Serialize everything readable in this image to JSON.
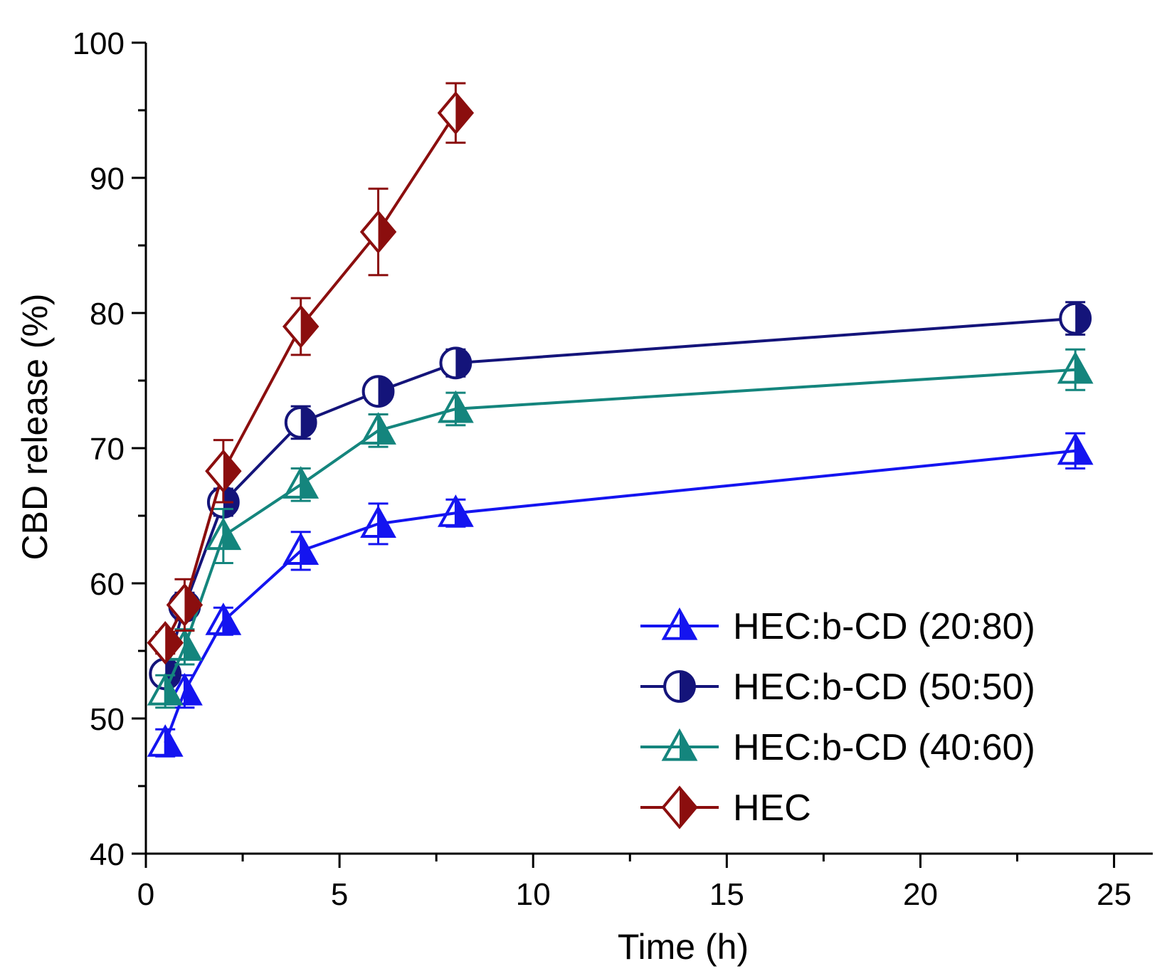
{
  "chart_data": {
    "type": "line",
    "xlabel": "Time (h)",
    "ylabel": "CBD release (%)",
    "xlim": [
      0,
      26
    ],
    "ylim": [
      40,
      100
    ],
    "xticks": [
      "0",
      "5",
      "10",
      "15",
      "20",
      "25"
    ],
    "yticks": [
      "40",
      "50",
      "60",
      "70",
      "80",
      "90",
      "100"
    ],
    "grid": false,
    "legend_position": "bottom-right",
    "series": [
      {
        "name": "HEC:b-CD (20:80)",
        "color": "#1414f0",
        "marker": "half-triangle",
        "x": [
          0.5,
          1,
          2,
          4,
          6,
          8,
          24
        ],
        "y": [
          48.2,
          52.0,
          57.2,
          62.4,
          64.4,
          65.2,
          69.8
        ],
        "err": [
          1.0,
          1.2,
          1.0,
          1.4,
          1.5,
          1.0,
          1.3
        ]
      },
      {
        "name": "HEC:b-CD (50:50)",
        "color": "#14147a",
        "marker": "half-circle",
        "x": [
          0.5,
          1,
          2,
          4,
          6,
          8,
          24
        ],
        "y": [
          53.3,
          58.3,
          66.0,
          71.9,
          74.2,
          76.3,
          79.6
        ],
        "err": [
          0.8,
          1.0,
          1.0,
          1.2,
          0.8,
          1.0,
          1.2
        ]
      },
      {
        "name": "HEC:b-CD (40:60)",
        "color": "#14857d",
        "marker": "half-triangle",
        "x": [
          0.5,
          1,
          2,
          4,
          6,
          8,
          24
        ],
        "y": [
          52.0,
          55.3,
          63.5,
          67.3,
          71.3,
          72.9,
          75.8
        ],
        "err": [
          1.2,
          1.3,
          2.0,
          1.2,
          1.2,
          1.2,
          1.5
        ]
      },
      {
        "name": "HEC",
        "color": "#8b0e0e",
        "marker": "half-diamond",
        "x": [
          0.5,
          1,
          2,
          4,
          6,
          8
        ],
        "y": [
          55.6,
          58.4,
          68.3,
          79.0,
          86.0,
          94.8
        ],
        "err": [
          0.8,
          1.9,
          2.3,
          2.1,
          3.2,
          2.2
        ]
      }
    ]
  }
}
